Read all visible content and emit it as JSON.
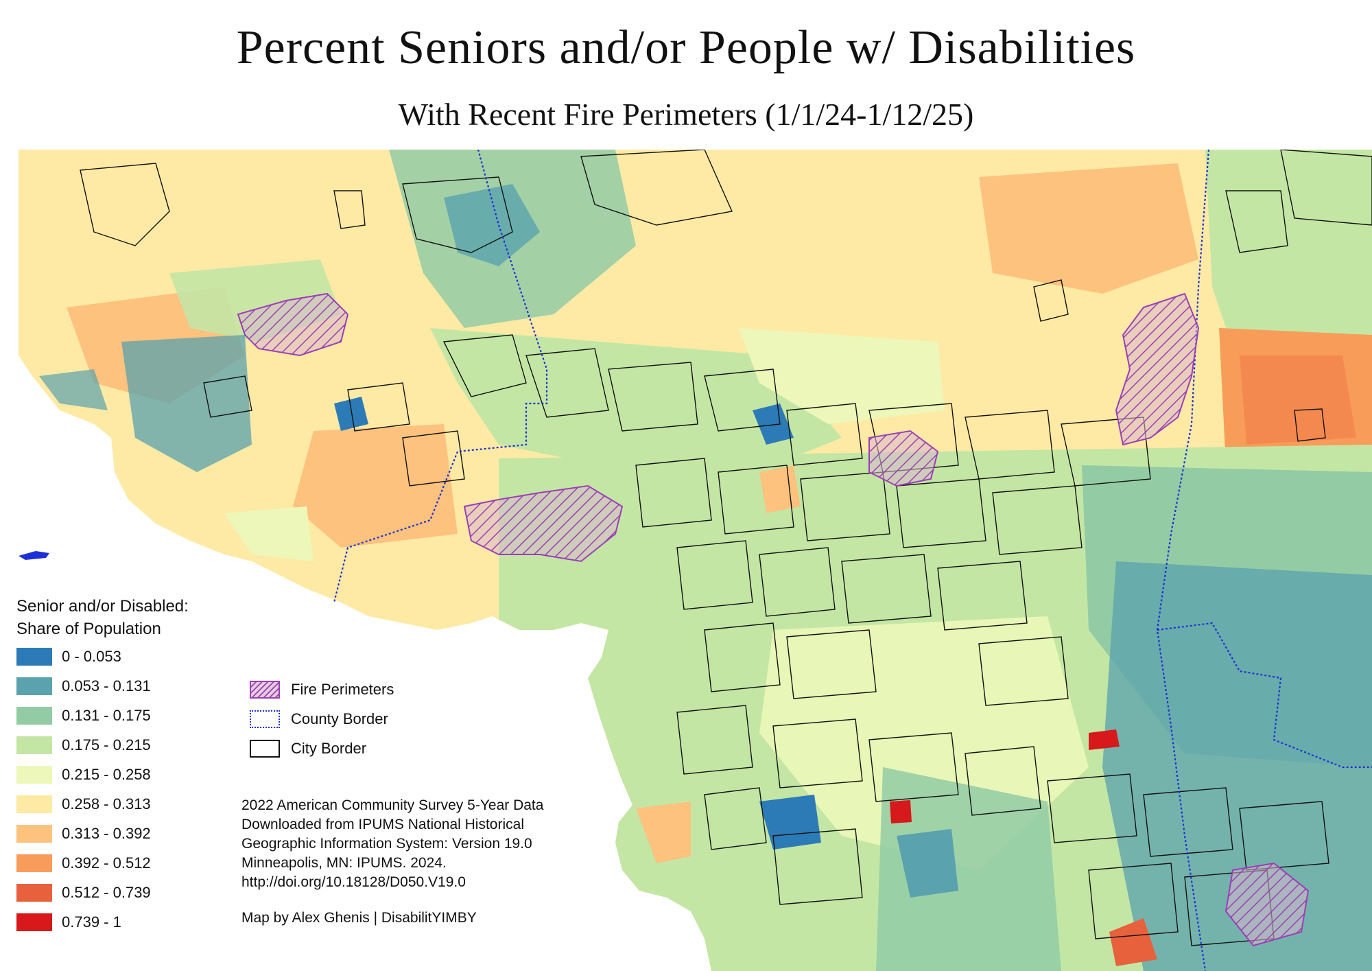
{
  "title": "Percent Seniors and/or People w/ Disabilities",
  "subtitle": "With Recent Fire Perimeters (1/1/24-1/12/25)",
  "legend": {
    "title_line1": "Senior and/or Disabled:",
    "title_line2": "Share of Population",
    "classes": [
      {
        "label": "0 - 0.053",
        "color": "#2c7bb6"
      },
      {
        "label": "0.053 - 0.131",
        "color": "#5aa2ae"
      },
      {
        "label": "0.131 - 0.175",
        "color": "#93cba4"
      },
      {
        "label": "0.175 - 0.215",
        "color": "#c4e6a5"
      },
      {
        "label": "0.215 - 0.258",
        "color": "#ecf7b9"
      },
      {
        "label": "0.258 - 0.313",
        "color": "#feeaa5"
      },
      {
        "label": "0.313 - 0.392",
        "color": "#fdc27e"
      },
      {
        "label": "0.392 - 0.512",
        "color": "#f89d59"
      },
      {
        "label": "0.512 - 0.739",
        "color": "#e8613d"
      },
      {
        "label": "0.739 - 1",
        "color": "#d7191c"
      }
    ]
  },
  "symbols": {
    "fire": "Fire Perimeters",
    "county": "County Border",
    "city": "City Border"
  },
  "colors": {
    "fire": "#9b3fb5",
    "county": "#1f2fd6",
    "city": "#111111"
  },
  "source": {
    "line1": "2022 American Community Survey 5-Year Data",
    "line2": "Downloaded from IPUMS National Historical",
    "line3": "Geographic Information System: Version 19.0",
    "line4": "Minneapolis, MN: IPUMS. 2024.",
    "line5": "http://doi.org/10.18128/D050.V19.0"
  },
  "credit": "Map by Alex Ghenis | DisabilitYIMBY"
}
